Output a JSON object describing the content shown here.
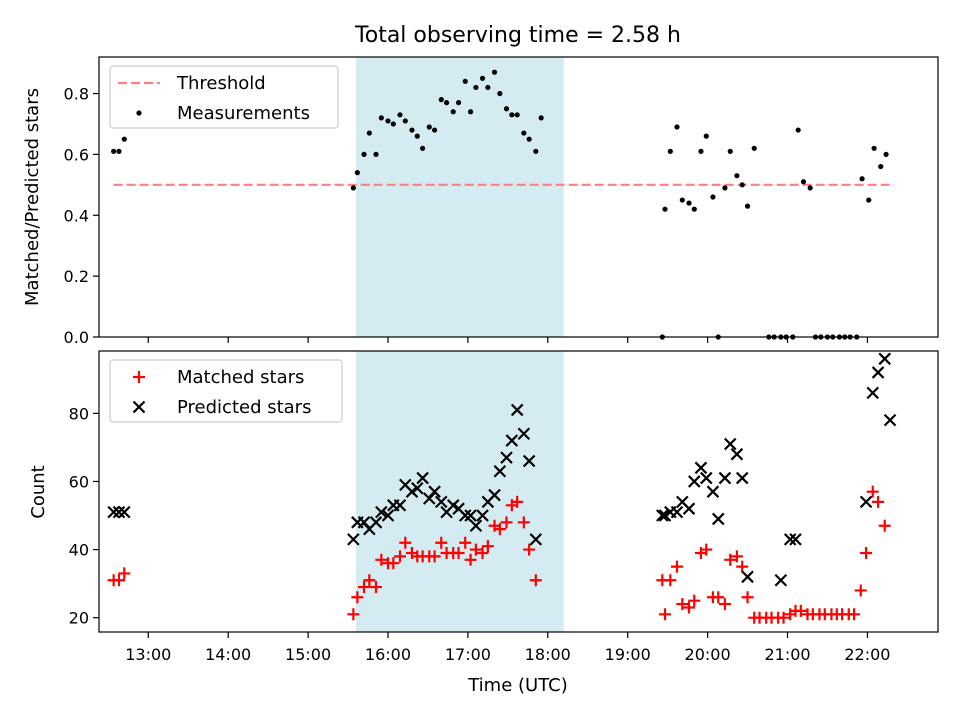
{
  "chart_data": [
    {
      "type": "scatter",
      "title": "Total observing time = 2.58 h",
      "xlabel": "",
      "ylabel": "Matched/Predicted stars",
      "xlim": [
        "12:23",
        "22:53"
      ],
      "ylim": [
        0,
        0.92
      ],
      "yticks": [
        "0.0",
        "0.2",
        "0.4",
        "0.6",
        "0.8"
      ],
      "shaded_interval": [
        "15:36",
        "18:12"
      ],
      "legend_position": "upper-left",
      "legend": [
        "Threshold",
        "Measurements"
      ],
      "series": [
        {
          "name": "Threshold",
          "kind": "dashed-line",
          "color": "#ff7f7f",
          "points": [
            [
              "12:34",
              0.5
            ],
            [
              "22:20",
              0.5
            ]
          ]
        },
        {
          "name": "Measurements",
          "kind": "dots",
          "color": "#000000",
          "points": [
            [
              "12:34",
              0.61
            ],
            [
              "12:38",
              0.61
            ],
            [
              "12:42",
              0.65
            ],
            [
              "15:34",
              0.49
            ],
            [
              "15:37",
              0.54
            ],
            [
              "15:42",
              0.6
            ],
            [
              "15:46",
              0.67
            ],
            [
              "15:51",
              0.6
            ],
            [
              "15:55",
              0.72
            ],
            [
              "16:00",
              0.71
            ],
            [
              "16:04",
              0.7
            ],
            [
              "16:09",
              0.73
            ],
            [
              "16:13",
              0.71
            ],
            [
              "16:18",
              0.68
            ],
            [
              "16:22",
              0.66
            ],
            [
              "16:26",
              0.62
            ],
            [
              "16:31",
              0.69
            ],
            [
              "16:35",
              0.68
            ],
            [
              "16:40",
              0.78
            ],
            [
              "16:44",
              0.77
            ],
            [
              "16:49",
              0.74
            ],
            [
              "16:53",
              0.77
            ],
            [
              "16:58",
              0.84
            ],
            [
              "17:02",
              0.74
            ],
            [
              "17:06",
              0.82
            ],
            [
              "17:11",
              0.85
            ],
            [
              "17:15",
              0.82
            ],
            [
              "17:20",
              0.87
            ],
            [
              "17:24",
              0.8
            ],
            [
              "17:29",
              0.75
            ],
            [
              "17:33",
              0.73
            ],
            [
              "17:37",
              0.73
            ],
            [
              "17:42",
              0.67
            ],
            [
              "17:46",
              0.65
            ],
            [
              "17:51",
              0.61
            ],
            [
              "17:55",
              0.72
            ],
            [
              "19:26",
              0.0
            ],
            [
              "19:28",
              0.42
            ],
            [
              "19:32",
              0.61
            ],
            [
              "19:37",
              0.69
            ],
            [
              "19:41",
              0.45
            ],
            [
              "19:46",
              0.44
            ],
            [
              "19:50",
              0.42
            ],
            [
              "19:55",
              0.61
            ],
            [
              "19:59",
              0.66
            ],
            [
              "20:04",
              0.46
            ],
            [
              "20:08",
              0.0
            ],
            [
              "20:13",
              0.49
            ],
            [
              "20:17",
              0.61
            ],
            [
              "20:22",
              0.53
            ],
            [
              "20:26",
              0.5
            ],
            [
              "20:30",
              0.43
            ],
            [
              "20:35",
              0.62
            ],
            [
              "20:46",
              0.0
            ],
            [
              "20:50",
              0.0
            ],
            [
              "20:55",
              0.0
            ],
            [
              "20:59",
              0.0
            ],
            [
              "21:04",
              0.0
            ],
            [
              "21:08",
              0.68
            ],
            [
              "21:12",
              0.51
            ],
            [
              "21:17",
              0.49
            ],
            [
              "21:21",
              0.0
            ],
            [
              "21:25",
              0.0
            ],
            [
              "21:30",
              0.0
            ],
            [
              "21:34",
              0.0
            ],
            [
              "21:39",
              0.0
            ],
            [
              "21:43",
              0.0
            ],
            [
              "21:47",
              0.0
            ],
            [
              "21:52",
              0.0
            ],
            [
              "21:56",
              0.52
            ],
            [
              "22:01",
              0.45
            ],
            [
              "22:05",
              0.62
            ],
            [
              "22:10",
              0.56
            ],
            [
              "22:14",
              0.6
            ]
          ]
        }
      ]
    },
    {
      "type": "scatter",
      "title": "",
      "xlabel": "Time (UTC)",
      "ylabel": "Count",
      "xlim": [
        "12:23",
        "22:53"
      ],
      "ylim": [
        15.8,
        98.3
      ],
      "xticks": [
        "13:00",
        "14:00",
        "15:00",
        "16:00",
        "17:00",
        "18:00",
        "19:00",
        "20:00",
        "21:00",
        "22:00"
      ],
      "yticks": [
        "20",
        "40",
        "60",
        "80"
      ],
      "shaded_interval": [
        "15:36",
        "18:12"
      ],
      "legend_position": "upper-left",
      "legend": [
        "Matched stars",
        "Predicted stars"
      ],
      "series": [
        {
          "name": "Matched stars",
          "kind": "plus",
          "color": "#ff0000",
          "points": [
            [
              "12:34",
              31
            ],
            [
              "12:38",
              31
            ],
            [
              "12:42",
              33
            ],
            [
              "15:34",
              21
            ],
            [
              "15:37",
              26
            ],
            [
              "15:42",
              29
            ],
            [
              "15:46",
              31
            ],
            [
              "15:51",
              29
            ],
            [
              "15:55",
              37
            ],
            [
              "16:00",
              36
            ],
            [
              "16:04",
              36
            ],
            [
              "16:09",
              38
            ],
            [
              "16:13",
              42
            ],
            [
              "16:18",
              39
            ],
            [
              "16:22",
              38
            ],
            [
              "16:26",
              38
            ],
            [
              "16:31",
              38
            ],
            [
              "16:35",
              38
            ],
            [
              "16:40",
              42
            ],
            [
              "16:44",
              39
            ],
            [
              "16:49",
              39
            ],
            [
              "16:53",
              39
            ],
            [
              "16:58",
              42
            ],
            [
              "17:02",
              37
            ],
            [
              "17:06",
              40
            ],
            [
              "17:11",
              39
            ],
            [
              "17:15",
              41
            ],
            [
              "17:20",
              47
            ],
            [
              "17:24",
              46
            ],
            [
              "17:29",
              48
            ],
            [
              "17:33",
              53
            ],
            [
              "17:37",
              54
            ],
            [
              "17:42",
              48
            ],
            [
              "17:46",
              40
            ],
            [
              "17:51",
              31
            ],
            [
              "19:26",
              31
            ],
            [
              "19:28",
              21
            ],
            [
              "19:32",
              31
            ],
            [
              "19:37",
              35
            ],
            [
              "19:41",
              24
            ],
            [
              "19:46",
              23
            ],
            [
              "19:50",
              25
            ],
            [
              "19:55",
              39
            ],
            [
              "19:59",
              40
            ],
            [
              "20:04",
              26
            ],
            [
              "20:08",
              26
            ],
            [
              "20:13",
              24
            ],
            [
              "20:17",
              37
            ],
            [
              "20:22",
              38
            ],
            [
              "20:26",
              35
            ],
            [
              "20:30",
              26
            ],
            [
              "20:35",
              20
            ],
            [
              "20:39",
              20
            ],
            [
              "20:44",
              20
            ],
            [
              "20:48",
              20
            ],
            [
              "20:53",
              20
            ],
            [
              "20:57",
              20
            ],
            [
              "21:02",
              21
            ],
            [
              "21:06",
              22
            ],
            [
              "21:10",
              22
            ],
            [
              "21:15",
              21
            ],
            [
              "21:19",
              21
            ],
            [
              "21:24",
              21
            ],
            [
              "21:28",
              21
            ],
            [
              "21:33",
              21
            ],
            [
              "21:37",
              21
            ],
            [
              "21:41",
              21
            ],
            [
              "21:46",
              21
            ],
            [
              "21:50",
              21
            ],
            [
              "21:55",
              28
            ],
            [
              "21:59",
              39
            ],
            [
              "22:04",
              57
            ],
            [
              "22:08",
              54
            ],
            [
              "22:13",
              47
            ]
          ]
        },
        {
          "name": "Predicted stars",
          "kind": "cross",
          "color": "#000000",
          "points": [
            [
              "12:34",
              51
            ],
            [
              "12:38",
              51
            ],
            [
              "12:42",
              51
            ],
            [
              "15:34",
              43
            ],
            [
              "15:37",
              48
            ],
            [
              "15:42",
              48
            ],
            [
              "15:46",
              46
            ],
            [
              "15:51",
              48
            ],
            [
              "15:55",
              51
            ],
            [
              "16:00",
              50
            ],
            [
              "16:04",
              53
            ],
            [
              "16:09",
              53
            ],
            [
              "16:13",
              59
            ],
            [
              "16:18",
              57
            ],
            [
              "16:22",
              58
            ],
            [
              "16:26",
              61
            ],
            [
              "16:31",
              55
            ],
            [
              "16:35",
              57
            ],
            [
              "16:40",
              54
            ],
            [
              "16:44",
              51
            ],
            [
              "16:49",
              53
            ],
            [
              "16:53",
              52
            ],
            [
              "16:58",
              50
            ],
            [
              "17:02",
              50
            ],
            [
              "17:06",
              47
            ],
            [
              "17:11",
              50
            ],
            [
              "17:15",
              54
            ],
            [
              "17:20",
              56
            ],
            [
              "17:24",
              63
            ],
            [
              "17:29",
              67
            ],
            [
              "17:33",
              72
            ],
            [
              "17:37",
              81
            ],
            [
              "17:42",
              74
            ],
            [
              "17:46",
              66
            ],
            [
              "17:51",
              43
            ],
            [
              "19:26",
              50
            ],
            [
              "19:28",
              50
            ],
            [
              "19:32",
              51
            ],
            [
              "19:37",
              51
            ],
            [
              "19:41",
              54
            ],
            [
              "19:46",
              52
            ],
            [
              "19:50",
              60
            ],
            [
              "19:55",
              64
            ],
            [
              "19:59",
              61
            ],
            [
              "20:04",
              57
            ],
            [
              "20:08",
              49
            ],
            [
              "20:13",
              61
            ],
            [
              "20:17",
              71
            ],
            [
              "20:22",
              68
            ],
            [
              "20:26",
              61
            ],
            [
              "20:30",
              32
            ],
            [
              "20:55",
              31
            ],
            [
              "21:02",
              43
            ],
            [
              "21:06",
              43
            ],
            [
              "21:59",
              54
            ],
            [
              "22:04",
              86
            ],
            [
              "22:08",
              92
            ],
            [
              "22:13",
              96
            ],
            [
              "22:17",
              78
            ]
          ]
        }
      ]
    }
  ]
}
